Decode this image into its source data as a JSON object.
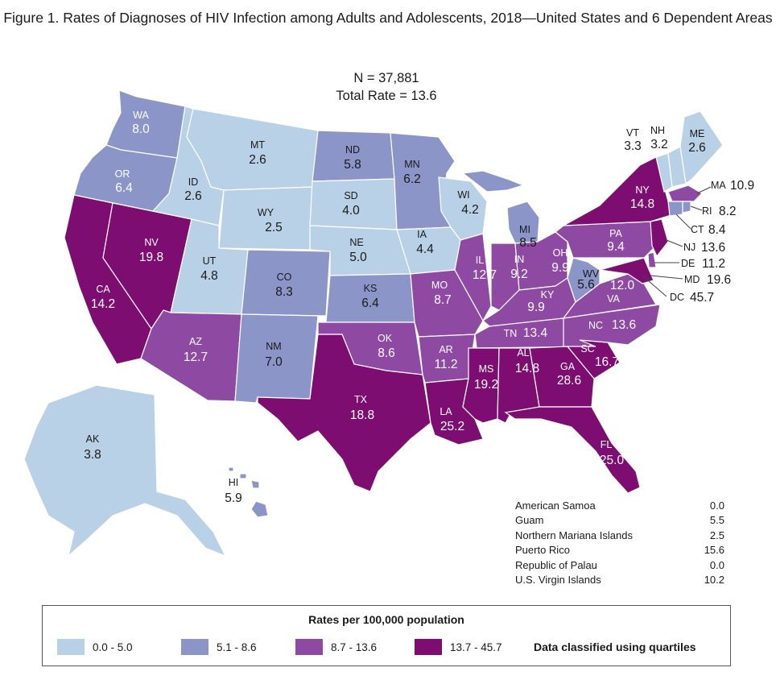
{
  "title": "Figure 1. Rates of Diagnoses of HIV Infection among Adults and Adolescents, 2018—United States and 6 Dependent Areas",
  "summary": {
    "n": "N = 37,881",
    "total": "Total Rate = 13.6"
  },
  "colors": {
    "q1": "#b9d1e6",
    "q2": "#8b95c8",
    "q3": "#8e4aa3",
    "q4": "#7d0d70",
    "border": "#ffffff"
  },
  "states": {
    "WA": {
      "abbr": "WA",
      "rate": "8.0"
    },
    "OR": {
      "abbr": "OR",
      "rate": "6.4"
    },
    "CA": {
      "abbr": "CA",
      "rate": "14.2"
    },
    "NV": {
      "abbr": "NV",
      "rate": "19.8"
    },
    "ID": {
      "abbr": "ID",
      "rate": "2.6"
    },
    "MT": {
      "abbr": "MT",
      "rate": "2.6"
    },
    "WY": {
      "abbr": "WY",
      "rate": "2.5"
    },
    "UT": {
      "abbr": "UT",
      "rate": "4.8"
    },
    "AZ": {
      "abbr": "AZ",
      "rate": "12.7"
    },
    "CO": {
      "abbr": "CO",
      "rate": "8.3"
    },
    "NM": {
      "abbr": "NM",
      "rate": "7.0"
    },
    "ND": {
      "abbr": "ND",
      "rate": "5.8"
    },
    "SD": {
      "abbr": "SD",
      "rate": "4.0"
    },
    "NE": {
      "abbr": "NE",
      "rate": "5.0"
    },
    "KS": {
      "abbr": "KS",
      "rate": "6.4"
    },
    "OK": {
      "abbr": "OK",
      "rate": "8.6"
    },
    "TX": {
      "abbr": "TX",
      "rate": "18.8"
    },
    "MN": {
      "abbr": "MN",
      "rate": "6.2"
    },
    "IA": {
      "abbr": "IA",
      "rate": "4.4"
    },
    "MO": {
      "abbr": "MO",
      "rate": "8.7"
    },
    "AR": {
      "abbr": "AR",
      "rate": "11.2"
    },
    "LA": {
      "abbr": "LA",
      "rate": "25.2"
    },
    "WI": {
      "abbr": "WI",
      "rate": "4.2"
    },
    "IL": {
      "abbr": "IL",
      "rate": "12.7"
    },
    "MI": {
      "abbr": "MI",
      "rate": "8.5"
    },
    "IN": {
      "abbr": "IN",
      "rate": "9.2"
    },
    "OH": {
      "abbr": "OH",
      "rate": "9.9"
    },
    "KY": {
      "abbr": "KY",
      "rate": "9.9"
    },
    "TN": {
      "abbr": "TN",
      "rate": "13.4"
    },
    "MS": {
      "abbr": "MS",
      "rate": "19.2"
    },
    "AL": {
      "abbr": "AL",
      "rate": "14.8"
    },
    "GA": {
      "abbr": "GA",
      "rate": "28.6"
    },
    "FL": {
      "abbr": "FL",
      "rate": "25.0"
    },
    "SC": {
      "abbr": "SC",
      "rate": "16.7"
    },
    "NC": {
      "abbr": "NC",
      "rate": "13.6"
    },
    "VA": {
      "abbr": "VA",
      "rate": "12.0"
    },
    "WV": {
      "abbr": "WV",
      "rate": "5.6"
    },
    "PA": {
      "abbr": "PA",
      "rate": "9.4"
    },
    "NY": {
      "abbr": "NY",
      "rate": "14.8"
    },
    "VT": {
      "abbr": "VT",
      "rate": "3.3"
    },
    "NH": {
      "abbr": "NH",
      "rate": "3.2"
    },
    "ME": {
      "abbr": "ME",
      "rate": "2.6"
    },
    "MA": {
      "abbr": "MA",
      "rate": "10.9"
    },
    "RI": {
      "abbr": "RI",
      "rate": "8.2"
    },
    "CT": {
      "abbr": "CT",
      "rate": "8.4"
    },
    "NJ": {
      "abbr": "NJ",
      "rate": "13.6"
    },
    "DE": {
      "abbr": "DE",
      "rate": "11.2"
    },
    "MD": {
      "abbr": "MD",
      "rate": "19.6"
    },
    "DC": {
      "abbr": "DC",
      "rate": "45.7"
    },
    "AK": {
      "abbr": "AK",
      "rate": "3.8"
    },
    "HI": {
      "abbr": "HI",
      "rate": "5.9"
    }
  },
  "territories": [
    {
      "name": "American Samoa",
      "rate": "0.0"
    },
    {
      "name": "Guam",
      "rate": "5.5"
    },
    {
      "name": "Northern Mariana Islands",
      "rate": "2.5"
    },
    {
      "name": "Puerto Rico",
      "rate": "15.6"
    },
    {
      "name": "Republic of Palau",
      "rate": "0.0"
    },
    {
      "name": "U.S. Virgin Islands",
      "rate": "10.2"
    }
  ],
  "legend": {
    "title": "Rates per 100,000 population",
    "items": [
      {
        "label": "0.0 - 5.0",
        "color": "#b9d1e6"
      },
      {
        "label": "5.1 - 8.6",
        "color": "#8b95c8"
      },
      {
        "label": "8.7 - 13.6",
        "color": "#8e4aa3"
      },
      {
        "label": "13.7 - 45.7",
        "color": "#7d0d70"
      }
    ],
    "note": "Data classified using quartiles"
  }
}
